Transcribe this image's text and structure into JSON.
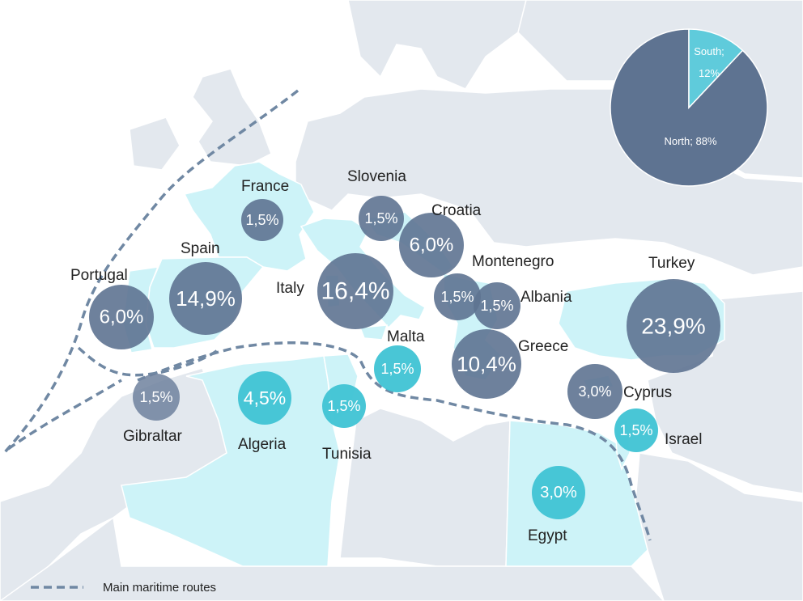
{
  "colors": {
    "sea": "#ffffff",
    "land": "#e3e8ee",
    "highlight_land": "#cdf3f8",
    "border": "#ffffff",
    "north": "#5e7391",
    "south": "#3fc3d4",
    "route": "#7088a3"
  },
  "countries": [
    {
      "id": "france",
      "label": "France",
      "value": "1,5%",
      "region": "north"
    },
    {
      "id": "slovenia",
      "label": "Slovenia",
      "value": "1,5%",
      "region": "north"
    },
    {
      "id": "croatia",
      "label": "Croatia",
      "value": "6,0%",
      "region": "north"
    },
    {
      "id": "spain",
      "label": "Spain",
      "value": "14,9%",
      "region": "north"
    },
    {
      "id": "portugal",
      "label": "Portugal",
      "value": "6,0%",
      "region": "north"
    },
    {
      "id": "italy",
      "label": "Italy",
      "value": "16,4%",
      "region": "north"
    },
    {
      "id": "montenegro",
      "label": "Montenegro",
      "value": "1,5%",
      "region": "north"
    },
    {
      "id": "albania",
      "label": "Albania",
      "value": "1,5%",
      "region": "north"
    },
    {
      "id": "turkey",
      "label": "Turkey",
      "value": "23,9%",
      "region": "north"
    },
    {
      "id": "greece",
      "label": "Greece",
      "value": "10,4%",
      "region": "north"
    },
    {
      "id": "malta",
      "label": "Malta",
      "value": "1,5%",
      "region": "south"
    },
    {
      "id": "cyprus",
      "label": "Cyprus",
      "value": "3,0%",
      "region": "north"
    },
    {
      "id": "gibraltar",
      "label": "Gibraltar",
      "value": "1,5%",
      "region": "north"
    },
    {
      "id": "algeria",
      "label": "Algeria",
      "value": "4,5%",
      "region": "south"
    },
    {
      "id": "tunisia",
      "label": "Tunisia",
      "value": "1,5%",
      "region": "south"
    },
    {
      "id": "israel",
      "label": "Israel",
      "value": "1,5%",
      "region": "south"
    },
    {
      "id": "egypt",
      "label": "Egypt",
      "value": "3,0%",
      "region": "south"
    }
  ],
  "pie": {
    "slices": [
      {
        "name": "North",
        "share": 88,
        "label": "North; 88%",
        "color": "#5e7391"
      },
      {
        "name": "South",
        "share": 12,
        "label_line1": "South;",
        "label_line2": "12%",
        "color": "#5fcbdb"
      }
    ]
  },
  "legend": {
    "label": "Main maritime routes"
  }
}
